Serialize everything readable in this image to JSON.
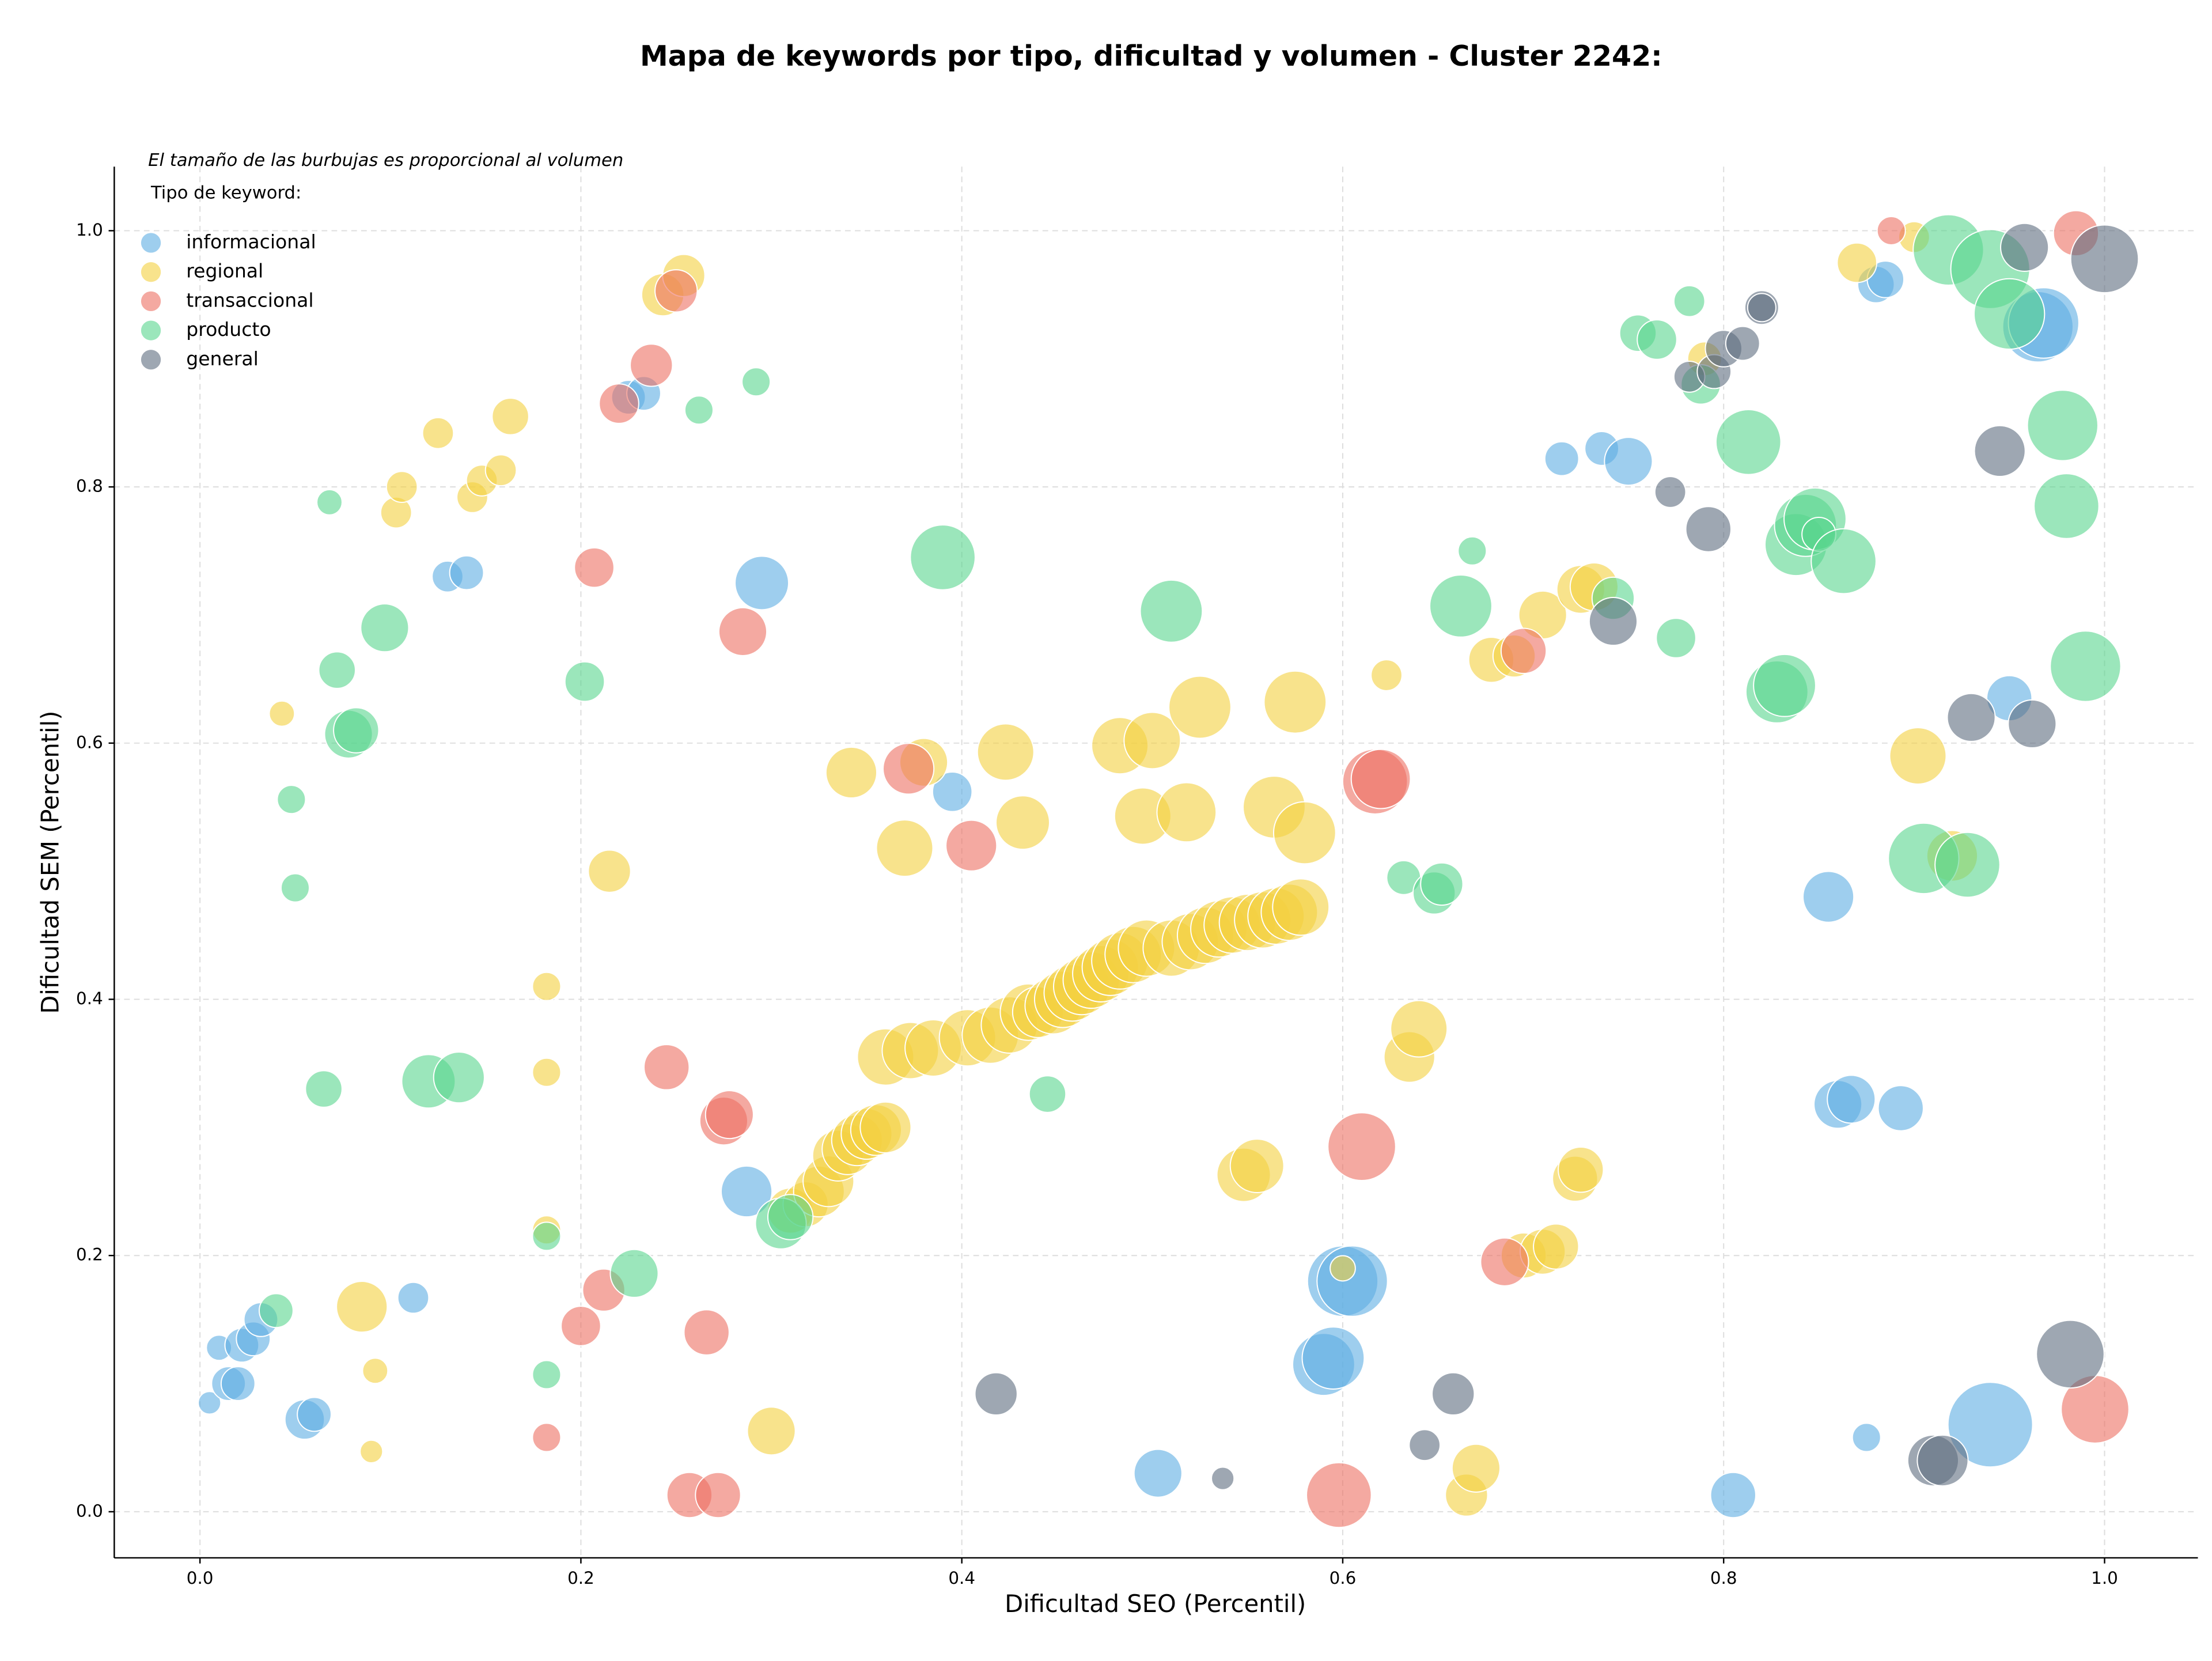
{
  "chart_data": {
    "type": "bubble",
    "title": "Mapa de keywords por tipo, dificultad y volumen - Cluster 2242:",
    "subtitle": "El tamaño de las burbujas es proporcional al volumen",
    "legend_title": "Tipo de keyword:",
    "xlabel": "Dificultad SEO (Percentil)",
    "ylabel": "Dificultad SEM (Percentil)",
    "xlim": [
      -0.045,
      1.049
    ],
    "ylim": [
      -0.036,
      1.05
    ],
    "xticks": [
      {
        "value": 0,
        "label": "0.0"
      },
      0.2,
      0.4,
      0.6,
      0.8,
      {
        "value": 1,
        "label": "1.0"
      }
    ],
    "yticks": [
      {
        "value": 0,
        "label": "0.0"
      },
      0.2,
      0.4,
      0.6,
      0.8,
      {
        "value": 1,
        "label": "1.0"
      }
    ],
    "grid": true,
    "legend": "upper left",
    "series": [
      {
        "name": "informacional",
        "color": "#5dade2",
        "x": [
          0.005,
          0.01,
          0.015,
          0.02,
          0.022,
          0.028,
          0.032,
          0.055,
          0.06,
          0.112,
          0.13,
          0.14,
          0.225,
          0.233,
          0.287,
          0.295,
          0.395,
          0.503,
          0.59,
          0.595,
          0.6,
          0.605,
          0.715,
          0.736,
          0.75,
          0.805,
          0.855,
          0.86,
          0.867,
          0.875,
          0.88,
          0.885,
          0.893,
          0.94,
          0.95,
          0.965,
          0.968
        ],
        "y": [
          0.085,
          0.128,
          0.1,
          0.1,
          0.13,
          0.135,
          0.15,
          0.072,
          0.076,
          0.167,
          0.73,
          0.733,
          0.87,
          0.873,
          0.25,
          0.725,
          0.562,
          0.03,
          0.115,
          0.12,
          0.18,
          0.18,
          0.822,
          0.83,
          0.82,
          0.013,
          0.48,
          0.318,
          0.322,
          0.058,
          0.958,
          0.962,
          0.315,
          0.068,
          0.635,
          0.925,
          0.928
        ],
        "sizes": [
          16,
          20,
          36,
          36,
          36,
          36,
          36,
          49,
          36,
          30,
          30,
          36,
          36,
          36,
          81,
          90,
          49,
          72,
          121,
          121,
          156,
          156,
          36,
          36,
          72,
          64,
          81,
          72,
          72,
          25,
          42,
          42,
          64,
          225,
          64,
          156,
          156
        ]
      },
      {
        "name": "regional",
        "color": "#f4d03f",
        "x": [
          0.043,
          0.085,
          0.092,
          0.09,
          0.103,
          0.106,
          0.125,
          0.143,
          0.148,
          0.158,
          0.163,
          0.182,
          0.182,
          0.182,
          0.215,
          0.243,
          0.254,
          0.3,
          0.342,
          0.37,
          0.38,
          0.423,
          0.432,
          0.483,
          0.5,
          0.495,
          0.518,
          0.525,
          0.575,
          0.564,
          0.58,
          0.6,
          0.623,
          0.635,
          0.64,
          0.548,
          0.555,
          0.665,
          0.67,
          0.678,
          0.69,
          0.705,
          0.725,
          0.732,
          0.722,
          0.725,
          0.695,
          0.705,
          0.712,
          0.79,
          0.87,
          0.9,
          0.902,
          0.92,
          0.31,
          0.318,
          0.325,
          0.33,
          0.335,
          0.34,
          0.345,
          0.35,
          0.355,
          0.36,
          0.36,
          0.373,
          0.385,
          0.403,
          0.415,
          0.425,
          0.435,
          0.44,
          0.448,
          0.453,
          0.458,
          0.463,
          0.468,
          0.473,
          0.478,
          0.483,
          0.49,
          0.497,
          0.51,
          0.52,
          0.528,
          0.535,
          0.542,
          0.55,
          0.558,
          0.565,
          0.572,
          0.578
        ],
        "y": [
          0.623,
          0.16,
          0.11,
          0.047,
          0.78,
          0.8,
          0.842,
          0.792,
          0.805,
          0.813,
          0.855,
          0.41,
          0.343,
          0.22,
          0.5,
          0.95,
          0.965,
          0.063,
          0.577,
          0.518,
          0.585,
          0.593,
          0.538,
          0.598,
          0.602,
          0.543,
          0.546,
          0.628,
          0.632,
          0.55,
          0.53,
          0.19,
          0.653,
          0.355,
          0.377,
          0.263,
          0.27,
          0.013,
          0.034,
          0.665,
          0.668,
          0.7,
          0.72,
          0.722,
          0.26,
          0.267,
          0.2,
          0.203,
          0.207,
          0.9,
          0.975,
          0.995,
          0.59,
          0.512,
          0.235,
          0.24,
          0.25,
          0.258,
          0.278,
          0.283,
          0.29,
          0.295,
          0.298,
          0.3,
          0.355,
          0.36,
          0.362,
          0.37,
          0.372,
          0.38,
          0.39,
          0.39,
          0.395,
          0.4,
          0.405,
          0.41,
          0.415,
          0.42,
          0.425,
          0.43,
          0.435,
          0.44,
          0.44,
          0.445,
          0.45,
          0.455,
          0.458,
          0.46,
          0.462,
          0.465,
          0.468,
          0.472
        ],
        "sizes": [
          20,
          81,
          20,
          16,
          30,
          30,
          30,
          30,
          30,
          30,
          42,
          25,
          25,
          25,
          56,
          56,
          56,
          72,
          81,
          100,
          72,
          100,
          90,
          100,
          100,
          100,
          110,
          121,
          121,
          121,
          121,
          20,
          30,
          81,
          100,
          90,
          90,
          56,
          72,
          64,
          56,
          72,
          72,
          72,
          64,
          64,
          64,
          64,
          64,
          36,
          49,
          30,
          100,
          81,
          64,
          64,
          81,
          81,
          81,
          81,
          81,
          81,
          81,
          81,
          100,
          100,
          100,
          100,
          100,
          100,
          100,
          81,
          100,
          100,
          100,
          100,
          100,
          100,
          100,
          100,
          100,
          100,
          100,
          100,
          100,
          100,
          100,
          100,
          100,
          100,
          100,
          100
        ]
      },
      {
        "name": "transaccional",
        "color": "#ec7063",
        "x": [
          0.207,
          0.2,
          0.212,
          0.22,
          0.237,
          0.25,
          0.245,
          0.266,
          0.257,
          0.272,
          0.275,
          0.278,
          0.285,
          0.372,
          0.405,
          0.598,
          0.61,
          0.617,
          0.62,
          0.182,
          0.685,
          0.695,
          0.888,
          0.985,
          0.995
        ],
        "y": [
          0.737,
          0.145,
          0.173,
          0.865,
          0.895,
          0.953,
          0.347,
          0.14,
          0.013,
          0.013,
          0.305,
          0.31,
          0.687,
          0.58,
          0.52,
          0.013,
          0.285,
          0.57,
          0.572,
          0.058,
          0.195,
          0.672,
          1.0,
          0.998,
          0.08
        ],
        "sizes": [
          49,
          49,
          56,
          49,
          56,
          56,
          64,
          64,
          64,
          64,
          72,
          72,
          72,
          81,
          81,
          132,
          144,
          132,
          110,
          25,
          72,
          64,
          25,
          64,
          144
        ]
      },
      {
        "name": "producto",
        "color": "#58d68d",
        "x": [
          0.068,
          0.048,
          0.05,
          0.065,
          0.072,
          0.078,
          0.082,
          0.097,
          0.12,
          0.136,
          0.182,
          0.182,
          0.202,
          0.228,
          0.262,
          0.292,
          0.04,
          0.305,
          0.31,
          0.39,
          0.445,
          0.51,
          0.632,
          0.648,
          0.652,
          0.668,
          0.662,
          0.742,
          0.755,
          0.765,
          0.775,
          0.782,
          0.788,
          0.813,
          0.828,
          0.832,
          0.838,
          0.843,
          0.848,
          0.85,
          0.863,
          0.905,
          0.928,
          0.918,
          0.94,
          0.95,
          0.978,
          0.98,
          0.99
        ],
        "y": [
          0.788,
          0.556,
          0.487,
          0.33,
          0.657,
          0.607,
          0.61,
          0.69,
          0.336,
          0.339,
          0.107,
          0.215,
          0.648,
          0.186,
          0.86,
          0.882,
          0.157,
          0.225,
          0.23,
          0.745,
          0.326,
          0.703,
          0.495,
          0.483,
          0.49,
          0.75,
          0.707,
          0.713,
          0.92,
          0.915,
          0.682,
          0.945,
          0.88,
          0.835,
          0.64,
          0.645,
          0.755,
          0.77,
          0.775,
          0.763,
          0.742,
          0.51,
          0.505,
          0.985,
          0.97,
          0.935,
          0.848,
          0.785,
          0.66
        ],
        "sizes": [
          20,
          25,
          25,
          42,
          42,
          72,
          64,
          72,
          90,
          81,
          25,
          25,
          49,
          72,
          25,
          25,
          36,
          81,
          64,
          132,
          42,
          121,
          36,
          56,
          56,
          25,
          121,
          56,
          42,
          49,
          49,
          30,
          49,
          132,
          121,
          121,
          121,
          121,
          121,
          36,
          132,
          156,
          132,
          156,
          196,
          156,
          156,
          132,
          156
        ]
      },
      {
        "name": "general",
        "color": "#5d6d7e",
        "x": [
          0.418,
          0.537,
          0.643,
          0.658,
          0.742,
          0.772,
          0.782,
          0.792,
          0.795,
          0.8,
          0.81,
          0.82,
          0.82,
          0.91,
          0.915,
          0.93,
          0.945,
          0.958,
          0.962,
          0.982,
          1.0
        ],
        "y": [
          0.092,
          0.026,
          0.052,
          0.092,
          0.695,
          0.796,
          0.886,
          0.767,
          0.89,
          0.908,
          0.912,
          0.94,
          0.94,
          0.04,
          0.04,
          0.62,
          0.828,
          0.987,
          0.615,
          0.123,
          0.978
        ],
        "sizes": [
          56,
          16,
          30,
          56,
          72,
          30,
          30,
          64,
          36,
          42,
          36,
          36,
          25,
          81,
          81,
          72,
          81,
          72,
          72,
          144,
          144
        ]
      }
    ]
  }
}
